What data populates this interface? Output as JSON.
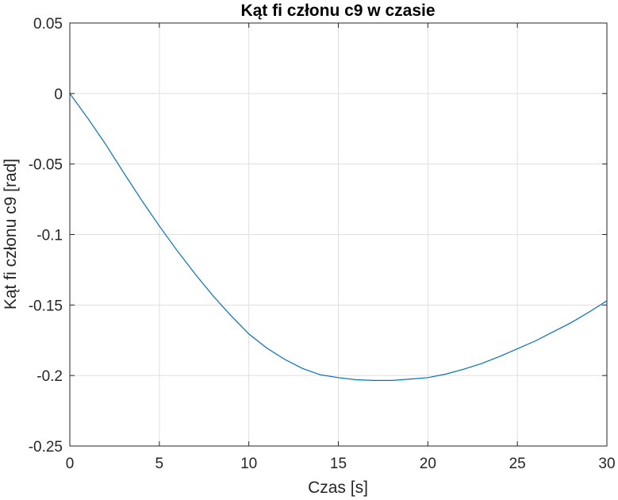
{
  "chart_data": {
    "type": "line",
    "title": "Kąt fi członu c9 w czasie",
    "xlabel": "Czas [s]",
    "ylabel": "Kąt fi członu c9 [rad]",
    "xlim": [
      0,
      30
    ],
    "ylim": [
      -0.25,
      0.05
    ],
    "xticks": [
      0,
      5,
      10,
      15,
      20,
      25,
      30
    ],
    "yticks": [
      -0.25,
      -0.2,
      -0.15,
      -0.1,
      -0.05,
      0,
      0.05
    ],
    "xtick_labels": [
      "0",
      "5",
      "10",
      "15",
      "20",
      "25",
      "30"
    ],
    "ytick_labels": [
      "-0.25",
      "-0.2",
      "-0.15",
      "-0.1",
      "-0.05",
      "0",
      "0.05"
    ],
    "grid": true,
    "line_color": "#0072BD",
    "series": [
      {
        "x": [
          0,
          1,
          2,
          3,
          4,
          5,
          6,
          7,
          8,
          9,
          10,
          11,
          12,
          13,
          14,
          15,
          16,
          17,
          18,
          19,
          20,
          21,
          22,
          23,
          24,
          25,
          26,
          27,
          28,
          29,
          30
        ],
        "y": [
          0,
          -0.0175,
          -0.036,
          -0.056,
          -0.0755,
          -0.094,
          -0.1115,
          -0.128,
          -0.1435,
          -0.1575,
          -0.1705,
          -0.1805,
          -0.1885,
          -0.195,
          -0.1995,
          -0.2015,
          -0.203,
          -0.2035,
          -0.2035,
          -0.2025,
          -0.2015,
          -0.199,
          -0.1955,
          -0.1915,
          -0.1865,
          -0.181,
          -0.1755,
          -0.169,
          -0.1625,
          -0.155,
          -0.147
        ]
      }
    ]
  }
}
